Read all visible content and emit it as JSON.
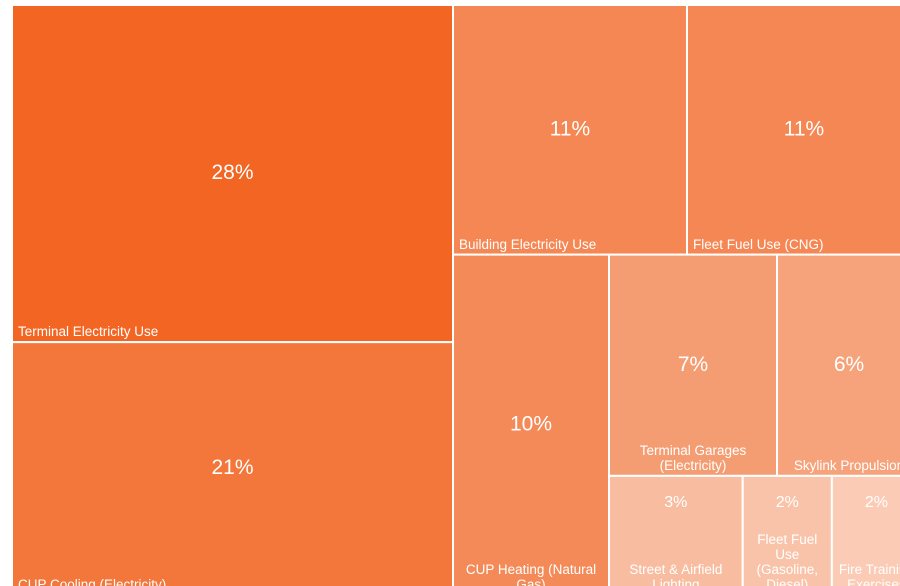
{
  "chart_data": {
    "type": "treemap",
    "categories": [
      "Terminal Electricity Use",
      "CUP Cooling (Electricity)",
      "Building Electricity Use",
      "Fleet Fuel Use (CNG)",
      "CUP Heating (Natural Gas)",
      "Terminal Garages (Electricity)",
      "Skylink Propulsion",
      "Street & Airfield Lighting",
      "Fleet Fuel Use (Gasoline, Diesel)",
      "Fire Training Exercises"
    ],
    "values": [
      28,
      21,
      11,
      11,
      10,
      7,
      6,
      3,
      2,
      2
    ],
    "value_labels": [
      "28%",
      "21%",
      "11%",
      "11%",
      "10%",
      "7%",
      "6%",
      "3%",
      "2%",
      "2%"
    ],
    "colors": [
      "#f26522",
      "#f3763a",
      "#f48753",
      "#f48753",
      "#f48a58",
      "#f59d72",
      "#f6a37c",
      "#f8bda0",
      "#f9c3a9",
      "#fbcbb5"
    ]
  }
}
